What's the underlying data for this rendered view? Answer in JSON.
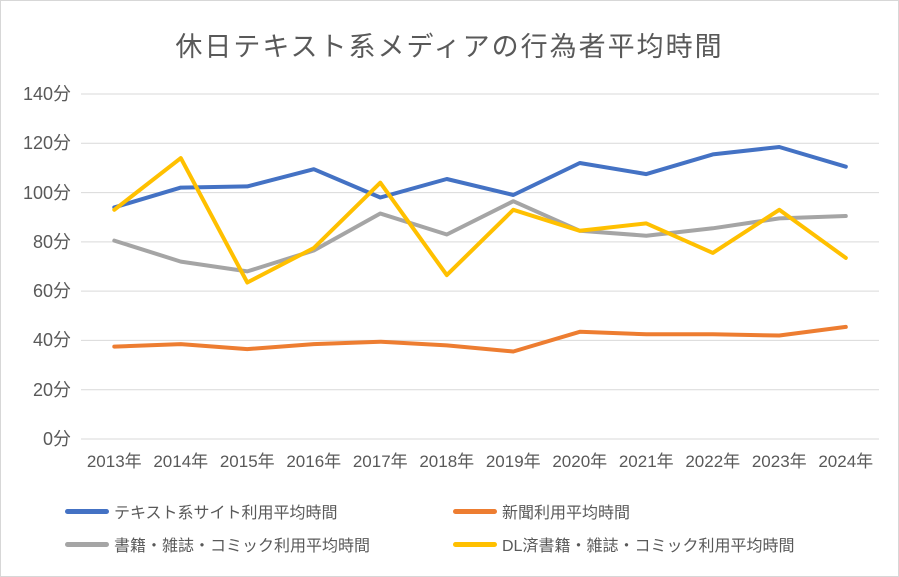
{
  "chart_data": {
    "type": "line",
    "title": "休日テキスト系メディアの行為者平均時間",
    "unit": "分",
    "categories": [
      "2013年",
      "2014年",
      "2015年",
      "2016年",
      "2017年",
      "2018年",
      "2019年",
      "2020年",
      "2021年",
      "2022年",
      "2023年",
      "2024年"
    ],
    "y_axis": {
      "range": [
        0,
        140
      ],
      "step": 20,
      "ticks": [
        {
          "value": 0,
          "label": "0分"
        },
        {
          "value": 20,
          "label": "20分"
        },
        {
          "value": 40,
          "label": "40分"
        },
        {
          "value": 60,
          "label": "60分"
        },
        {
          "value": 80,
          "label": "80分"
        },
        {
          "value": 100,
          "label": "100分"
        },
        {
          "value": 120,
          "label": "120分"
        },
        {
          "value": 140,
          "label": "140分"
        }
      ]
    },
    "grid": true,
    "legend_position": "bottom",
    "series": [
      {
        "key": "text-sites",
        "name": "テキスト系サイト利用平均時間",
        "color": "#4472C4",
        "values": [
          94,
          102,
          102.5,
          109.5,
          98,
          105.5,
          99,
          112,
          107.5,
          115.5,
          118.5,
          110.5
        ]
      },
      {
        "key": "newspaper",
        "name": "新聞利用平均時間",
        "color": "#ED7D31",
        "values": [
          37.5,
          38.5,
          36.5,
          38.5,
          39.5,
          38,
          35.5,
          43.5,
          42.5,
          42.5,
          42,
          45.5
        ]
      },
      {
        "key": "books-magazines-comics",
        "name": "書籍・雑誌・コミック利用平均時間",
        "color": "#A5A5A5",
        "values": [
          80.5,
          72,
          68,
          76.5,
          91.5,
          83,
          96.5,
          84.5,
          82.5,
          85.5,
          89.5,
          90.5
        ]
      },
      {
        "key": "dl-books-magazines-comics",
        "name": "DL済書籍・雑誌・コミック利用平均時間",
        "color": "#FFC000",
        "values": [
          93,
          114,
          63.5,
          77.5,
          104,
          66.5,
          93,
          84.5,
          87.5,
          75.5,
          93,
          73.5
        ]
      }
    ],
    "colors": {
      "grid": "#D9D9D9",
      "text": "#595959",
      "background": "#FFFFFF"
    }
  }
}
